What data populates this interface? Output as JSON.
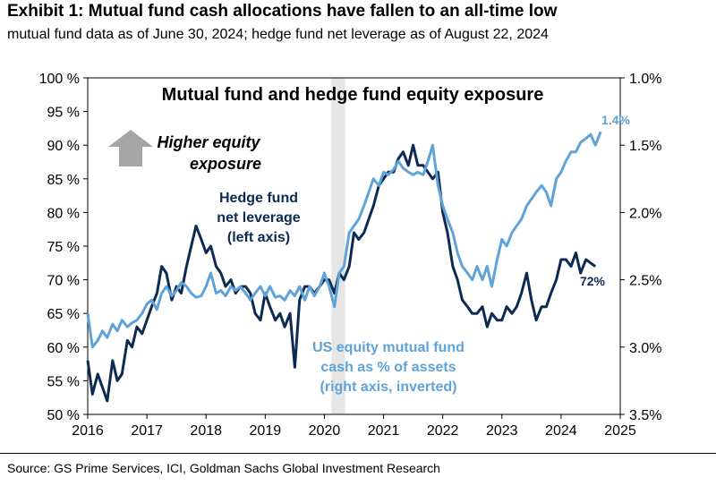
{
  "header": {
    "title": "Exhibit 1: Mutual fund cash allocations have fallen to an all-time low",
    "subtitle": "mutual fund data as of June 30, 2024; hedge fund net leverage as of August 22, 2024"
  },
  "footer": {
    "source": "Source: GS Prime Services, ICI, Goldman Sachs Global Investment Research"
  },
  "colors": {
    "hedge_fund": "#0d2b52",
    "mutual_fund": "#5fa3d9",
    "recession_band": "#e6e6e6",
    "arrow": "#a6a6a6"
  },
  "chart_data": {
    "type": "line",
    "title": "Mutual fund and hedge fund equity exposure",
    "x_ticks": [
      "2016",
      "2017",
      "2018",
      "2019",
      "2020",
      "2021",
      "2022",
      "2023",
      "2024",
      "2025"
    ],
    "xlim": [
      2016,
      2025
    ],
    "y_left": {
      "ticks": [
        "100 %",
        "95 %",
        "90 %",
        "85 %",
        "80 %",
        "75 %",
        "70 %",
        "65 %",
        "60 %",
        "55 %",
        "50 %"
      ],
      "lim": [
        50,
        100
      ]
    },
    "y_right": {
      "ticks": [
        "1.0%",
        "1.5%",
        "2.0%",
        "2.5%",
        "3.0%",
        "3.5%"
      ],
      "lim": [
        1.0,
        3.5
      ],
      "inverted": true
    },
    "shaded_band": {
      "x_start": 2020.12,
      "x_end": 2020.35
    },
    "annotations": {
      "arrow_text_line1": "Higher equity",
      "arrow_text_line2": "exposure",
      "hedge_label_line1": "Hedge fund",
      "hedge_label_line2": "net leverage",
      "hedge_label_line3": "(left axis)",
      "mutual_label_line1": "US equity mutual fund",
      "mutual_label_line2": "cash as % of assets",
      "mutual_label_line3": "(right axis, inverted)",
      "mutual_last_value": "1.4%",
      "hedge_last_value": "72%"
    },
    "series": [
      {
        "name": "Hedge fund net leverage (left axis)",
        "axis": "left",
        "color": "#0d2b52",
        "points": [
          [
            2016.0,
            58
          ],
          [
            2016.08,
            53
          ],
          [
            2016.17,
            56
          ],
          [
            2016.25,
            54
          ],
          [
            2016.33,
            52
          ],
          [
            2016.42,
            58
          ],
          [
            2016.5,
            55
          ],
          [
            2016.58,
            56
          ],
          [
            2016.67,
            61
          ],
          [
            2016.75,
            60
          ],
          [
            2016.83,
            63
          ],
          [
            2016.92,
            62
          ],
          [
            2017.0,
            64
          ],
          [
            2017.08,
            66
          ],
          [
            2017.17,
            68
          ],
          [
            2017.25,
            72
          ],
          [
            2017.33,
            71
          ],
          [
            2017.42,
            67
          ],
          [
            2017.5,
            69
          ],
          [
            2017.58,
            68
          ],
          [
            2017.67,
            72
          ],
          [
            2017.75,
            75
          ],
          [
            2017.83,
            78
          ],
          [
            2017.92,
            76
          ],
          [
            2018.0,
            74
          ],
          [
            2018.08,
            75
          ],
          [
            2018.17,
            72
          ],
          [
            2018.25,
            71
          ],
          [
            2018.33,
            69
          ],
          [
            2018.42,
            70
          ],
          [
            2018.5,
            68
          ],
          [
            2018.58,
            69
          ],
          [
            2018.67,
            69
          ],
          [
            2018.75,
            68
          ],
          [
            2018.83,
            65
          ],
          [
            2018.92,
            64
          ],
          [
            2019.0,
            68
          ],
          [
            2019.08,
            66
          ],
          [
            2019.17,
            64
          ],
          [
            2019.25,
            65
          ],
          [
            2019.33,
            63
          ],
          [
            2019.42,
            65
          ],
          [
            2019.5,
            57
          ],
          [
            2019.58,
            67
          ],
          [
            2019.67,
            69
          ],
          [
            2019.75,
            69
          ],
          [
            2019.83,
            68
          ],
          [
            2019.92,
            69
          ],
          [
            2020.0,
            70
          ],
          [
            2020.08,
            70
          ],
          [
            2020.17,
            68
          ],
          [
            2020.25,
            71
          ],
          [
            2020.33,
            70
          ],
          [
            2020.42,
            72
          ],
          [
            2020.5,
            77
          ],
          [
            2020.58,
            76
          ],
          [
            2020.67,
            77
          ],
          [
            2020.75,
            79
          ],
          [
            2020.83,
            81
          ],
          [
            2020.92,
            84
          ],
          [
            2021.0,
            85
          ],
          [
            2021.08,
            86
          ],
          [
            2021.17,
            86
          ],
          [
            2021.25,
            88
          ],
          [
            2021.33,
            89
          ],
          [
            2021.42,
            87
          ],
          [
            2021.5,
            90
          ],
          [
            2021.58,
            87
          ],
          [
            2021.67,
            87
          ],
          [
            2021.75,
            86
          ],
          [
            2021.83,
            85
          ],
          [
            2021.92,
            86
          ],
          [
            2022.0,
            80
          ],
          [
            2022.08,
            77
          ],
          [
            2022.17,
            72
          ],
          [
            2022.25,
            70
          ],
          [
            2022.33,
            67
          ],
          [
            2022.42,
            66
          ],
          [
            2022.5,
            65
          ],
          [
            2022.58,
            65
          ],
          [
            2022.67,
            66
          ],
          [
            2022.75,
            63
          ],
          [
            2022.83,
            65
          ],
          [
            2022.92,
            64
          ],
          [
            2023.0,
            64
          ],
          [
            2023.08,
            66
          ],
          [
            2023.17,
            65
          ],
          [
            2023.25,
            66
          ],
          [
            2023.33,
            68
          ],
          [
            2023.42,
            71
          ],
          [
            2023.5,
            67
          ],
          [
            2023.58,
            64
          ],
          [
            2023.67,
            66
          ],
          [
            2023.75,
            66
          ],
          [
            2023.83,
            68
          ],
          [
            2023.92,
            70
          ],
          [
            2024.0,
            73
          ],
          [
            2024.08,
            73
          ],
          [
            2024.17,
            72
          ],
          [
            2024.25,
            74
          ],
          [
            2024.33,
            71
          ],
          [
            2024.42,
            73
          ],
          [
            2024.5,
            72.5
          ],
          [
            2024.58,
            72
          ]
        ]
      },
      {
        "name": "US equity mutual fund cash as % of assets (right axis, inverted)",
        "axis": "right",
        "color": "#5fa3d9",
        "points": [
          [
            2016.0,
            2.75
          ],
          [
            2016.08,
            3.0
          ],
          [
            2016.17,
            2.95
          ],
          [
            2016.25,
            2.88
          ],
          [
            2016.33,
            2.93
          ],
          [
            2016.42,
            2.83
          ],
          [
            2016.5,
            2.88
          ],
          [
            2016.58,
            2.8
          ],
          [
            2016.67,
            2.85
          ],
          [
            2016.75,
            2.82
          ],
          [
            2016.83,
            2.8
          ],
          [
            2016.92,
            2.75
          ],
          [
            2017.0,
            2.68
          ],
          [
            2017.08,
            2.65
          ],
          [
            2017.17,
            2.72
          ],
          [
            2017.25,
            2.6
          ],
          [
            2017.33,
            2.55
          ],
          [
            2017.42,
            2.62
          ],
          [
            2017.5,
            2.58
          ],
          [
            2017.58,
            2.52
          ],
          [
            2017.67,
            2.55
          ],
          [
            2017.75,
            2.6
          ],
          [
            2017.83,
            2.63
          ],
          [
            2017.92,
            2.62
          ],
          [
            2018.0,
            2.55
          ],
          [
            2018.08,
            2.45
          ],
          [
            2018.17,
            2.6
          ],
          [
            2018.25,
            2.58
          ],
          [
            2018.33,
            2.62
          ],
          [
            2018.42,
            2.55
          ],
          [
            2018.5,
            2.58
          ],
          [
            2018.58,
            2.55
          ],
          [
            2018.67,
            2.6
          ],
          [
            2018.75,
            2.65
          ],
          [
            2018.83,
            2.6
          ],
          [
            2018.92,
            2.55
          ],
          [
            2019.0,
            2.62
          ],
          [
            2019.08,
            2.55
          ],
          [
            2019.17,
            2.63
          ],
          [
            2019.25,
            2.62
          ],
          [
            2019.33,
            2.65
          ],
          [
            2019.42,
            2.58
          ],
          [
            2019.5,
            2.62
          ],
          [
            2019.58,
            2.55
          ],
          [
            2019.67,
            2.65
          ],
          [
            2019.75,
            2.55
          ],
          [
            2019.83,
            2.62
          ],
          [
            2019.92,
            2.55
          ],
          [
            2020.0,
            2.45
          ],
          [
            2020.08,
            2.55
          ],
          [
            2020.17,
            2.7
          ],
          [
            2020.25,
            2.45
          ],
          [
            2020.33,
            2.4
          ],
          [
            2020.42,
            2.15
          ],
          [
            2020.5,
            2.1
          ],
          [
            2020.58,
            2.05
          ],
          [
            2020.67,
            1.95
          ],
          [
            2020.75,
            1.85
          ],
          [
            2020.83,
            1.75
          ],
          [
            2020.92,
            1.8
          ],
          [
            2021.0,
            1.7
          ],
          [
            2021.08,
            1.72
          ],
          [
            2021.17,
            1.68
          ],
          [
            2021.25,
            1.62
          ],
          [
            2021.33,
            1.67
          ],
          [
            2021.42,
            1.7
          ],
          [
            2021.5,
            1.72
          ],
          [
            2021.58,
            1.7
          ],
          [
            2021.67,
            1.72
          ],
          [
            2021.75,
            1.62
          ],
          [
            2021.83,
            1.5
          ],
          [
            2021.92,
            1.8
          ],
          [
            2022.0,
            1.95
          ],
          [
            2022.08,
            2.05
          ],
          [
            2022.17,
            2.15
          ],
          [
            2022.25,
            2.3
          ],
          [
            2022.33,
            2.4
          ],
          [
            2022.42,
            2.45
          ],
          [
            2022.5,
            2.5
          ],
          [
            2022.58,
            2.4
          ],
          [
            2022.67,
            2.5
          ],
          [
            2022.75,
            2.4
          ],
          [
            2022.83,
            2.55
          ],
          [
            2022.92,
            2.35
          ],
          [
            2023.0,
            2.2
          ],
          [
            2023.08,
            2.25
          ],
          [
            2023.17,
            2.15
          ],
          [
            2023.25,
            2.1
          ],
          [
            2023.33,
            2.05
          ],
          [
            2023.42,
            1.95
          ],
          [
            2023.5,
            1.9
          ],
          [
            2023.58,
            1.85
          ],
          [
            2023.67,
            1.8
          ],
          [
            2023.75,
            1.85
          ],
          [
            2023.83,
            1.95
          ],
          [
            2023.92,
            1.75
          ],
          [
            2024.0,
            1.7
          ],
          [
            2024.08,
            1.62
          ],
          [
            2024.17,
            1.55
          ],
          [
            2024.25,
            1.55
          ],
          [
            2024.33,
            1.48
          ],
          [
            2024.42,
            1.45
          ],
          [
            2024.5,
            1.42
          ],
          [
            2024.58,
            1.5
          ],
          [
            2024.67,
            1.4
          ]
        ]
      }
    ]
  }
}
